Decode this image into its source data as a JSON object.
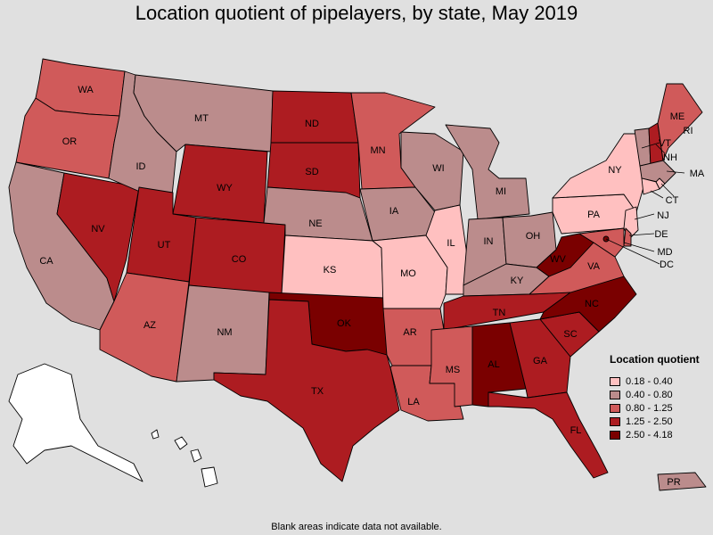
{
  "title": "Location quotient of pipelayers, by state, May 2019",
  "footnote": "Blank areas indicate data not available.",
  "legend": {
    "title": "Location quotient",
    "classes": [
      {
        "label": "0.18 - 0.40",
        "color": "#ffc0c0"
      },
      {
        "label": "0.40 - 0.80",
        "color": "#bb8c8c"
      },
      {
        "label": "0.80 - 1.25",
        "color": "#d05a5a"
      },
      {
        "label": "1.25 - 2.50",
        "color": "#ad1c21"
      },
      {
        "label": "2.50 - 4.18",
        "color": "#7a0000"
      }
    ]
  },
  "chart_data": {
    "type": "choropleth",
    "title": "Location quotient of pipelayers, by state, May 2019",
    "legend_position": "bottom-right",
    "states": [
      {
        "abbr": "WA",
        "class": 2
      },
      {
        "abbr": "OR",
        "class": 2
      },
      {
        "abbr": "CA",
        "class": 1
      },
      {
        "abbr": "NV",
        "class": 3
      },
      {
        "abbr": "ID",
        "class": 1
      },
      {
        "abbr": "MT",
        "class": 1
      },
      {
        "abbr": "WY",
        "class": 3
      },
      {
        "abbr": "UT",
        "class": 3
      },
      {
        "abbr": "AZ",
        "class": 2
      },
      {
        "abbr": "CO",
        "class": 3
      },
      {
        "abbr": "NM",
        "class": 1
      },
      {
        "abbr": "ND",
        "class": 3
      },
      {
        "abbr": "SD",
        "class": 3
      },
      {
        "abbr": "NE",
        "class": 1
      },
      {
        "abbr": "KS",
        "class": 0
      },
      {
        "abbr": "OK",
        "class": 4
      },
      {
        "abbr": "TX",
        "class": 3
      },
      {
        "abbr": "MN",
        "class": 2
      },
      {
        "abbr": "IA",
        "class": 1
      },
      {
        "abbr": "MO",
        "class": 0
      },
      {
        "abbr": "AR",
        "class": 2
      },
      {
        "abbr": "LA",
        "class": 2
      },
      {
        "abbr": "WI",
        "class": 1
      },
      {
        "abbr": "IL",
        "class": 0
      },
      {
        "abbr": "MI",
        "class": 1
      },
      {
        "abbr": "IN",
        "class": 1
      },
      {
        "abbr": "OH",
        "class": 1
      },
      {
        "abbr": "KY",
        "class": 1
      },
      {
        "abbr": "TN",
        "class": 3
      },
      {
        "abbr": "MS",
        "class": 2
      },
      {
        "abbr": "AL",
        "class": 4
      },
      {
        "abbr": "GA",
        "class": 3
      },
      {
        "abbr": "FL",
        "class": 3
      },
      {
        "abbr": "SC",
        "class": 3
      },
      {
        "abbr": "NC",
        "class": 4
      },
      {
        "abbr": "VA",
        "class": 2
      },
      {
        "abbr": "WV",
        "class": 4
      },
      {
        "abbr": "PA",
        "class": 0
      },
      {
        "abbr": "NY",
        "class": 0
      },
      {
        "abbr": "VT",
        "class": 1
      },
      {
        "abbr": "NH",
        "class": 3
      },
      {
        "abbr": "ME",
        "class": 2
      },
      {
        "abbr": "MA",
        "class": 1
      },
      {
        "abbr": "RI",
        "class": 0
      },
      {
        "abbr": "CT",
        "class": 0
      },
      {
        "abbr": "NJ",
        "class": 0
      },
      {
        "abbr": "DE",
        "class": 2
      },
      {
        "abbr": "MD",
        "class": 2
      },
      {
        "abbr": "DC",
        "class": 4
      },
      {
        "abbr": "PR",
        "class": 1
      },
      {
        "abbr": "AK",
        "class": null
      },
      {
        "abbr": "HI",
        "class": null
      }
    ]
  }
}
